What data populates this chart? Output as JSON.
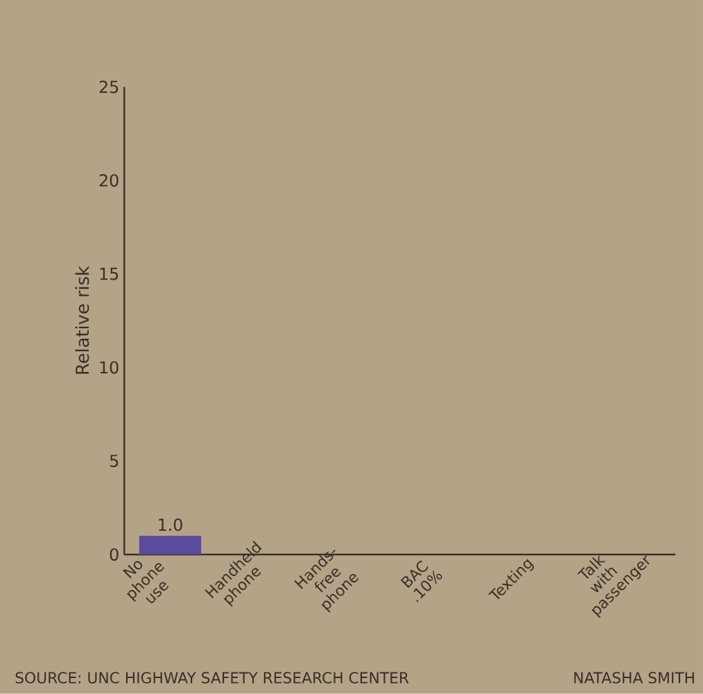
{
  "chart_data": {
    "type": "bar",
    "ylabel": "Relative risk",
    "categories": [
      "No phone use",
      "Handheld phone",
      "Hands-free phone",
      "BAC .10%",
      "Texting",
      "Talk with passenger"
    ],
    "values": [
      1.0,
      null,
      null,
      null,
      null,
      null
    ],
    "value_labels": [
      "1.0",
      null,
      null,
      null,
      null,
      null
    ],
    "color": "#5b4b9b",
    "ylim": [
      0,
      25
    ],
    "yticks": [
      0,
      5,
      10,
      15,
      20,
      25
    ],
    "annotations": [
      "SOURCE: UNC HIGHWAY SAFETY RESEARCH CENTER",
      "NATASHA SMITH"
    ]
  }
}
